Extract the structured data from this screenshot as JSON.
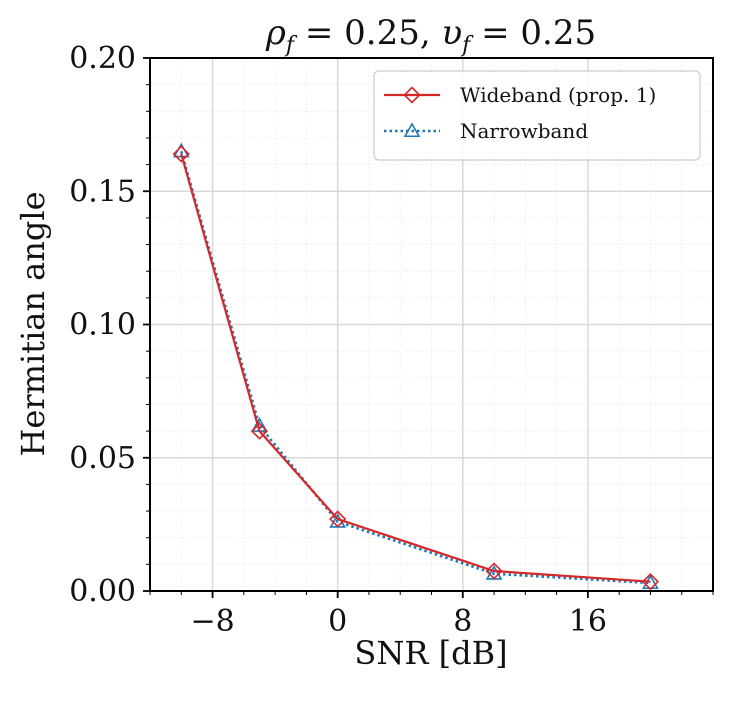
{
  "chart_data": {
    "type": "line",
    "title": "ρ_f = 0.25, υ_f = 0.25",
    "title_parts": {
      "rho": "ρ",
      "sub1": "f",
      "mid": " = 0.25, ",
      "upsilon": "υ",
      "sub2": "f",
      "end": " = 0.25"
    },
    "xlabel": "SNR [dB]",
    "ylabel": "Hermitian angle",
    "xlim": [
      -12,
      24
    ],
    "ylim": [
      0,
      0.2
    ],
    "x_ticks": [
      -8,
      0,
      8,
      16
    ],
    "x_tick_labels": [
      "−8",
      "0",
      "8",
      "16"
    ],
    "y_ticks": [
      0,
      0.05,
      0.1,
      0.15,
      0.2
    ],
    "y_tick_labels": [
      "0.00",
      "0.05",
      "0.10",
      "0.15",
      "0.20"
    ],
    "grid": true,
    "legend_position": "top-right",
    "x": [
      -10,
      -5,
      0,
      10,
      20
    ],
    "series": [
      {
        "name": "Wideband (prop. 1)",
        "values": [
          0.164,
          0.06,
          0.027,
          0.0075,
          0.0035
        ],
        "color": "#d62728",
        "linestyle": "solid",
        "marker": "diamond"
      },
      {
        "name": "Narrowband",
        "values": [
          0.165,
          0.062,
          0.026,
          0.0065,
          0.003
        ],
        "color": "#1f77b4",
        "linestyle": "dotted",
        "marker": "triangle"
      }
    ]
  }
}
